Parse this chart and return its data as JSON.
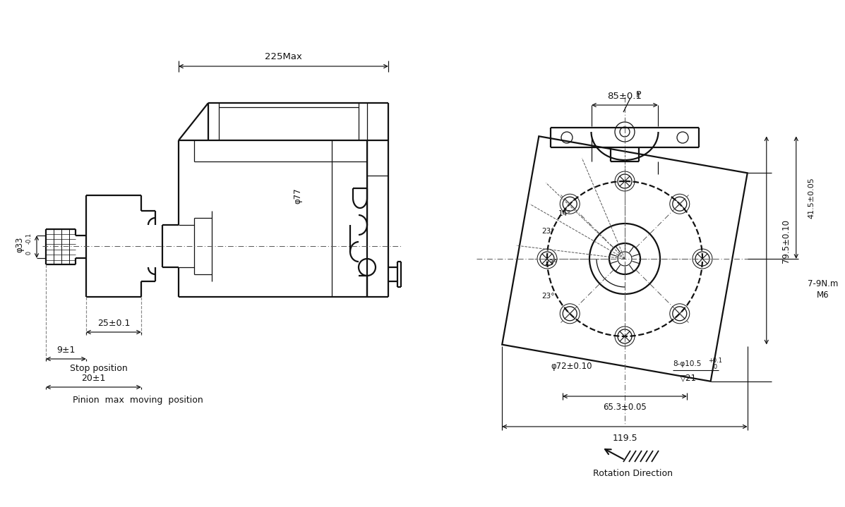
{
  "bg_color": "#ffffff",
  "line_color": "#111111",
  "lw_main": 1.6,
  "lw_thin": 0.9,
  "lw_dim": 0.85,
  "left_labels": {
    "dim_225": "225Max",
    "dim_phi77": "φ77",
    "dim_phi33": "φ33",
    "dim_phi33_tol": "-0.1\n  0",
    "dim_25": "25±0.1",
    "dim_9": "9±1",
    "stop_pos": "Stop position",
    "dim_20": "20±1",
    "pinion_max": "Pinion  max  moving  position"
  },
  "right_labels": {
    "dim_85": "85±0.1",
    "dim_415": "41.5±0.05",
    "dim_795": "79.5±0.10",
    "dim_7_9Nm": "7-9N.m",
    "dim_M6": "M6",
    "dim_phi72": "φ72±0.10",
    "dim_653": "65.3±0.05",
    "dim_8phi_top": "8-φ10.5",
    "dim_8phi_tol": "+0.1",
    "dim_8phi_bot": "   0",
    "dim_v21": "▽21",
    "dim_1195": "119.5",
    "rotation": "Rotation Direction",
    "label_P": "P",
    "angles": [
      "14°",
      "23°",
      "23°",
      "23°"
    ]
  }
}
